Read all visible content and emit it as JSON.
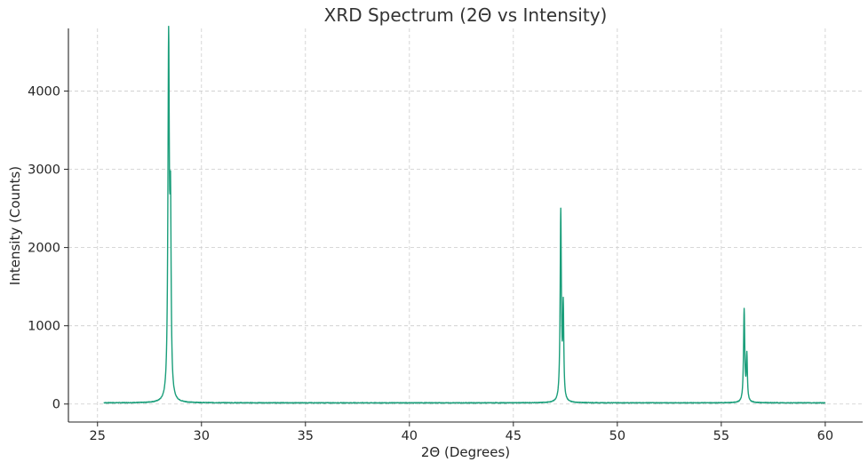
{
  "chart_data": {
    "type": "line",
    "title": "XRD Spectrum (2Θ vs Intensity)",
    "xlabel": "2Θ (Degrees)",
    "ylabel": "Intensity (Counts)",
    "xlim": [
      23.6,
      61.8
    ],
    "ylim": [
      -230,
      4800
    ],
    "xticks": [
      25,
      30,
      35,
      40,
      45,
      50,
      55,
      60
    ],
    "yticks": [
      0,
      1000,
      2000,
      3000,
      4000
    ],
    "grid": true,
    "grid_style": "dashed",
    "line_color": "#1a9e7a",
    "series": [
      {
        "name": "",
        "x_range": [
          25.3,
          60.0
        ],
        "baseline": 15,
        "noise": 4,
        "peaks": [
          {
            "center": 28.42,
            "height": 4520,
            "width": 0.04
          },
          {
            "center": 28.51,
            "height": 2220,
            "width": 0.035
          },
          {
            "center": 47.28,
            "height": 2420,
            "width": 0.035
          },
          {
            "center": 47.4,
            "height": 1160,
            "width": 0.03
          },
          {
            "center": 56.1,
            "height": 1180,
            "width": 0.035
          },
          {
            "center": 56.23,
            "height": 580,
            "width": 0.03
          }
        ]
      }
    ]
  }
}
